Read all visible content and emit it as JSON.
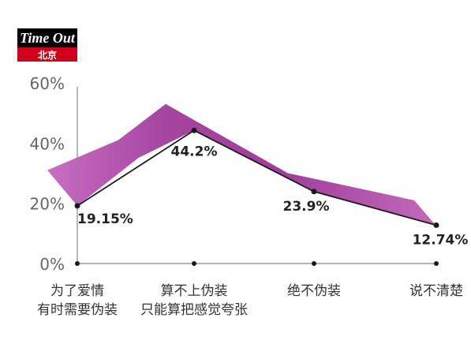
{
  "brand": {
    "name": "Time Out",
    "city": "北京",
    "color": "#d0021b"
  },
  "chart_data": {
    "type": "line",
    "categories": [
      [
        "为了爱情",
        "有时需要伪装"
      ],
      [
        "算不上伪装",
        "只能算把感觉夸张"
      ],
      [
        "绝不伪装"
      ],
      [
        "说不清楚"
      ]
    ],
    "values": [
      19.15,
      44.2,
      23.9,
      12.74
    ],
    "value_labels": [
      "19.15%",
      "44.2%",
      "23.9%",
      "12.74%"
    ],
    "yticks": [
      "0%",
      "20%",
      "40%",
      "60%"
    ],
    "ylim": [
      0,
      60
    ],
    "grid": false,
    "colors": {
      "ribbon": "#b84fb0",
      "ribbon_dark": "#8a2f86",
      "line": "#1a1a1a",
      "axis": "#888888"
    }
  }
}
